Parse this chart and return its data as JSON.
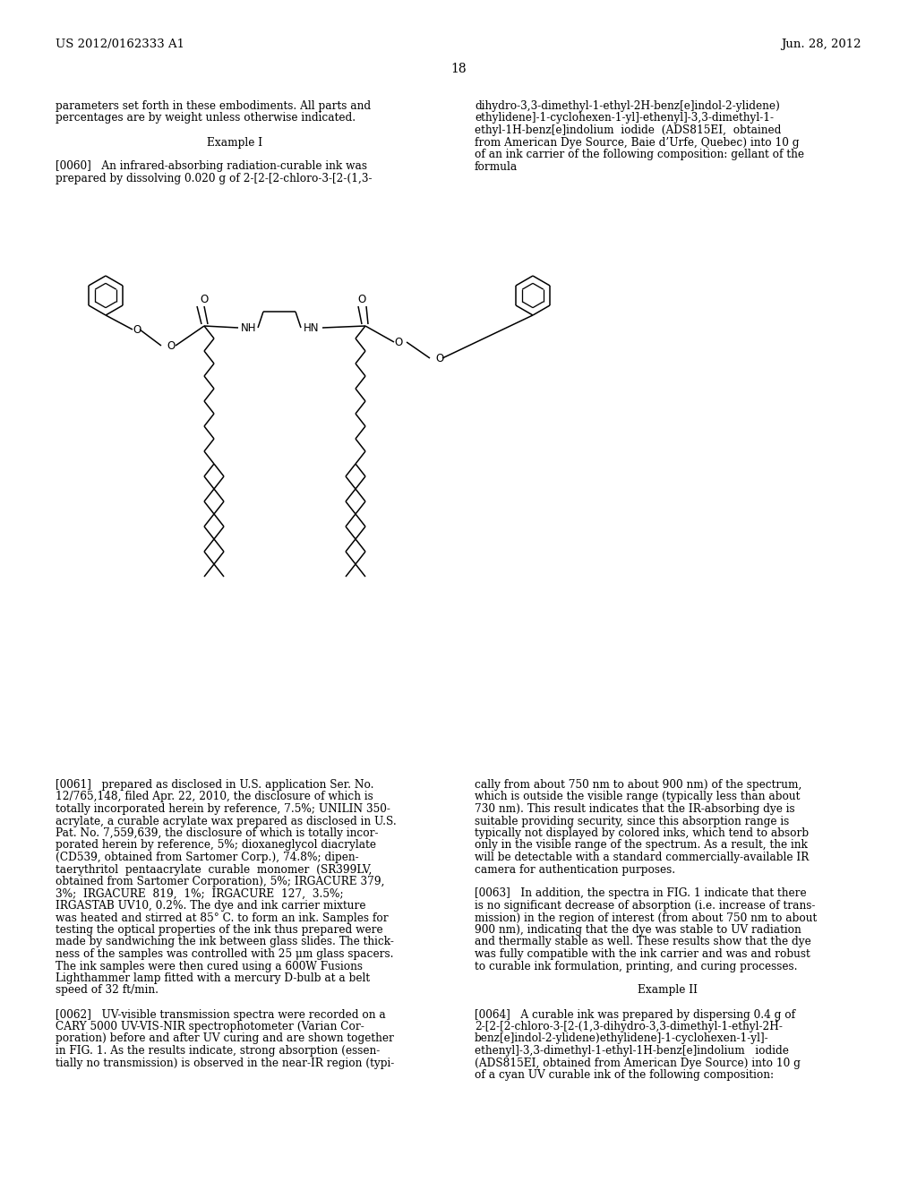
{
  "patent_number": "US 2012/0162333 A1",
  "date": "Jun. 28, 2012",
  "page_number": "18",
  "background_color": "#ffffff",
  "left_col_lines": [
    "parameters set forth in these embodiments. All parts and",
    "percentages are by weight unless otherwise indicated.",
    "",
    "Example I",
    "",
    "[0060]   An infrared-absorbing radiation-curable ink was",
    "prepared by dissolving 0.020 g of 2-[2-[2-chloro-3-[2-(1,3-"
  ],
  "right_col_lines": [
    "dihydro-3,3-dimethyl-1-ethyl-2H-benz[e]indol-2-ylidene)",
    "ethylidene]-1-cyclohexen-1-yl]-ethenyl]-3,3-dimethyl-1-",
    "ethyl-1H-benz[e]indolium  iodide  (ADS815EI,  obtained",
    "from American Dye Source, Baie d’Urfe, Quebec) into 10 g",
    "of an ink carrier of the following composition: gellant of the",
    "formula"
  ],
  "bottom_left_lines": [
    "[0061]   prepared as disclosed in U.S. application Ser. No.",
    "12/765,148, filed Apr. 22, 2010, the disclosure of which is",
    "totally incorporated herein by reference, 7.5%; UNILIN 350-",
    "acrylate, a curable acrylate wax prepared as disclosed in U.S.",
    "Pat. No. 7,559,639, the disclosure of which is totally incor-",
    "porated herein by reference, 5%; dioxaneglycol diacrylate",
    "(CD539, obtained from Sartomer Corp.), 74.8%; dipen-",
    "taerythritol  pentaacrylate  curable  monomer  (SR399LV,",
    "obtained from Sartomer Corporation), 5%; IRGACURE 379,",
    "3%;  IRGACURE  819,  1%;  IRGACURE  127,  3.5%;",
    "IRGASTAB UV10, 0.2%. The dye and ink carrier mixture",
    "was heated and stirred at 85° C. to form an ink. Samples for",
    "testing the optical properties of the ink thus prepared were",
    "made by sandwiching the ink between glass slides. The thick-",
    "ness of the samples was controlled with 25 μm glass spacers.",
    "The ink samples were then cured using a 600W Fusions",
    "Lighthammer lamp fitted with a mercury D-bulb at a belt",
    "speed of 32 ft/min.",
    "",
    "[0062]   UV-visible transmission spectra were recorded on a",
    "CARY 5000 UV-VIS-NIR spectrophotometer (Varian Cor-",
    "poration) before and after UV curing and are shown together",
    "in FIG. 1. As the results indicate, strong absorption (essen-",
    "tially no transmission) is observed in the near-IR region (typi-"
  ],
  "bottom_right_lines": [
    "cally from about 750 nm to about 900 nm) of the spectrum,",
    "which is outside the visible range (typically less than about",
    "730 nm). This result indicates that the IR-absorbing dye is",
    "suitable providing security, since this absorption range is",
    "typically not displayed by colored inks, which tend to absorb",
    "only in the visible range of the spectrum. As a result, the ink",
    "will be detectable with a standard commercially-available IR",
    "camera for authentication purposes.",
    "",
    "[0063]   In addition, the spectra in FIG. 1 indicate that there",
    "is no significant decrease of absorption (i.e. increase of trans-",
    "mission) in the region of interest (from about 750 nm to about",
    "900 nm), indicating that the dye was stable to UV radiation",
    "and thermally stable as well. These results show that the dye",
    "was fully compatible with the ink carrier and was and robust",
    "to curable ink formulation, printing, and curing processes.",
    "",
    "Example II",
    "",
    "[0064]   A curable ink was prepared by dispersing 0.4 g of",
    "2-[2-[2-chloro-3-[2-(1,3-dihydro-3,3-dimethyl-1-ethyl-2H-",
    "benz[e]indol-2-ylidene)ethylidene]-1-cyclohexen-1-yl]-",
    "ethenyl]-3,3-dimethyl-1-ethyl-1H-benz[e]indolium   iodide",
    "(ADS815EI, obtained from American Dye Source) into 10 g",
    "of a cyan UV curable ink of the following composition:"
  ]
}
